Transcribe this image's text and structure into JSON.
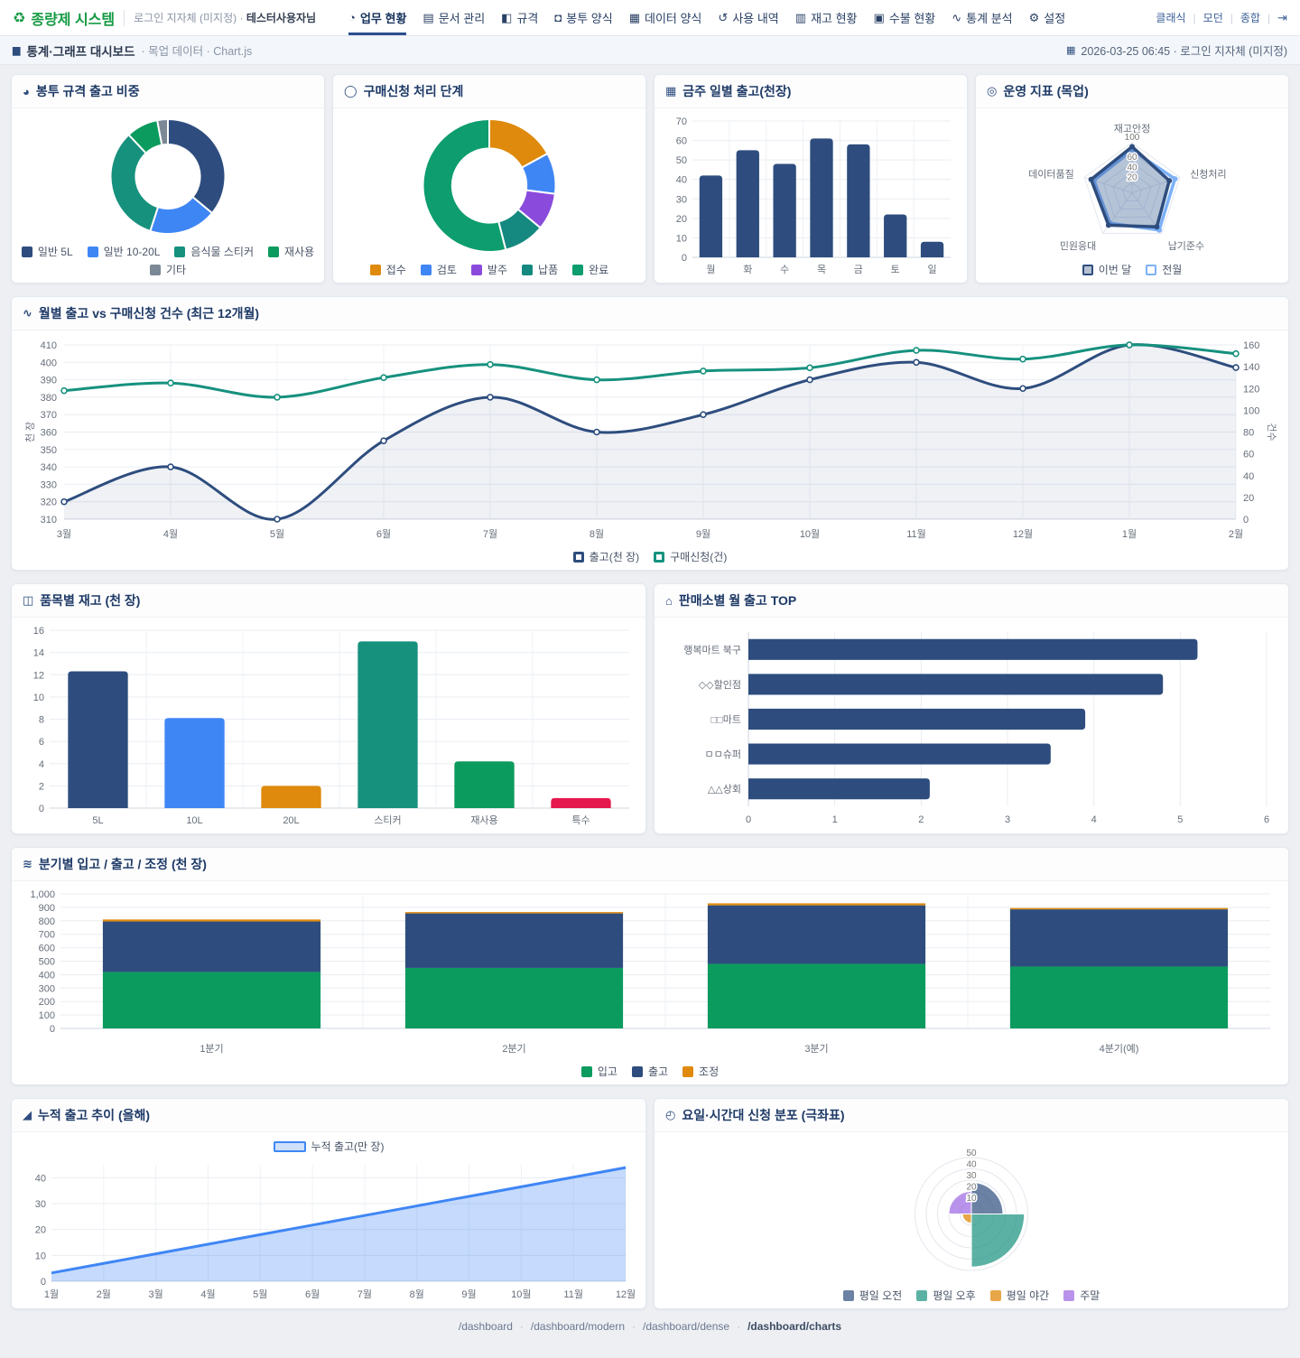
{
  "header": {
    "brand": "종량제 시스템",
    "brand_icon": "♻",
    "login_label": "로그인 지자체 (미지정) ·",
    "user_name": "테스터사용자님",
    "nav": [
      {
        "name": "work-status",
        "icon": "◔",
        "label": "업무 현황",
        "active": true
      },
      {
        "name": "document-management",
        "icon": "▤",
        "label": "문서 관리",
        "active": false
      },
      {
        "name": "specs",
        "icon": "◧",
        "label": "규격",
        "active": false
      },
      {
        "name": "envelope-forms",
        "icon": "◘",
        "label": "봉투 양식",
        "active": false
      },
      {
        "name": "data-forms",
        "icon": "▦",
        "label": "데이터 양식",
        "active": false
      },
      {
        "name": "usage-history",
        "icon": "↺",
        "label": "사용 내역",
        "active": false
      },
      {
        "name": "inventory-status",
        "icon": "▥",
        "label": "재고 현황",
        "active": false
      },
      {
        "name": "ledger-status",
        "icon": "▣",
        "label": "수불 현황",
        "active": false
      },
      {
        "name": "stats-analysis",
        "icon": "∿",
        "label": "통계 분석",
        "active": false
      },
      {
        "name": "settings",
        "icon": "⚙",
        "label": "설정",
        "active": false
      }
    ],
    "mode_links": [
      "클래식",
      "모던",
      "종합"
    ],
    "logout_icon": "⇥"
  },
  "breadcrumb": {
    "icon": "▆",
    "title": "통계·그래프 대시보드",
    "sub": "· 목업 데이터 · Chart.js",
    "date_icon": "▦",
    "right": "2026-03-25 06:45 · 로그인 지자체 (미지정)"
  },
  "footer": {
    "links": [
      "/dashboard",
      "/dashboard/modern",
      "/dashboard/dense",
      "/dashboard/charts"
    ]
  },
  "colors": {
    "navy": "#2e4d7e",
    "blue": "#3f86f5",
    "teal": "#16917e",
    "green": "#0c9b5e",
    "gray": "#7d8896",
    "orange": "#df8a0c",
    "purple": "#8a4bdd",
    "dark_teal": "#15897f",
    "red": "#e5194d",
    "light_blue": "#7db1f8",
    "brand_green": "#169a44",
    "active_underline": "#2b4f8e"
  },
  "chart_data": [
    {
      "type": "doughnut",
      "title": "봉투 규격 출고 비중",
      "icon": "◕",
      "labels": [
        "일반 5L",
        "일반 10-20L",
        "음식물 스티커",
        "재사용",
        "기타"
      ],
      "values": [
        36,
        19,
        33,
        9,
        3
      ],
      "colors": [
        "#2e4d7e",
        "#3f86f5",
        "#16917e",
        "#0c9b5e",
        "#7d8896"
      ],
      "legend_position": "bottom"
    },
    {
      "type": "doughnut",
      "title": "구매신청 처리 단계",
      "icon": "◯",
      "labels": [
        "접수",
        "검토",
        "발주",
        "납품",
        "완료"
      ],
      "values": [
        17,
        10,
        9,
        10,
        54
      ],
      "colors": [
        "#df8a0c",
        "#3f86f5",
        "#8a4bdd",
        "#15897f",
        "#0e9d6e"
      ],
      "legend_position": "bottom"
    },
    {
      "type": "bar",
      "title": "금주 일별 출고(천장)",
      "icon": "▦",
      "categories": [
        "월",
        "화",
        "수",
        "목",
        "금",
        "토",
        "일"
      ],
      "values": [
        42,
        55,
        48,
        61,
        58,
        22,
        8
      ],
      "colors": "#2e4d7e",
      "ylim": [
        0,
        70
      ],
      "step": 10,
      "grid": true
    },
    {
      "type": "radar",
      "title": "운영 지표 (목업)",
      "icon": "◎",
      "axes": [
        "재고안정",
        "신청처리",
        "납기준수",
        "민원응대",
        "데이터품질"
      ],
      "series": [
        {
          "name": "이번 달",
          "values": [
            92,
            78,
            84,
            80,
            86
          ],
          "border": "#2e4d7e",
          "fill": "rgba(46,77,126,0.3)"
        },
        {
          "name": "전월",
          "values": [
            85,
            90,
            92,
            75,
            80
          ],
          "border": "#7db1f8",
          "fill": "rgba(125,177,248,0.12)"
        }
      ],
      "max": 100,
      "ticks": [
        20,
        40,
        60,
        100
      ],
      "legend_position": "bottom"
    },
    {
      "type": "dual_line",
      "title": "월별 출고 vs 구매신청 건수 (최근 12개월)",
      "icon": "∿",
      "categories": [
        "3월",
        "4월",
        "5월",
        "6월",
        "7월",
        "8월",
        "9월",
        "10월",
        "11월",
        "12월",
        "1월",
        "2월"
      ],
      "series": [
        {
          "name": "출고(천 장)",
          "axis": "left",
          "color": "#2e4d7e",
          "fill": "rgba(46,77,126,0.08)",
          "values": [
            320,
            340,
            310,
            355,
            380,
            360,
            370,
            390,
            400,
            385,
            410,
            397
          ]
        },
        {
          "name": "구매신청(건)",
          "axis": "right",
          "color": "#16917e",
          "values": [
            118,
            125,
            112,
            130,
            142,
            128,
            136,
            139,
            155,
            147,
            160,
            152
          ]
        }
      ],
      "left_axis": {
        "label": "천 장",
        "min": 310,
        "max": 410,
        "step": 10
      },
      "right_axis": {
        "label": "건수",
        "min": 0,
        "max": 160,
        "step": 20
      },
      "legend_position": "bottom"
    },
    {
      "type": "bar",
      "title": "품목별 재고 (천 장)",
      "icon": "◫",
      "categories": [
        "5L",
        "10L",
        "20L",
        "스티커",
        "재사용",
        "특수"
      ],
      "values": [
        12.3,
        8.1,
        2,
        15,
        4.2,
        0.9
      ],
      "colors": [
        "#2e4d7e",
        "#3f86f5",
        "#df8a0c",
        "#16917e",
        "#0c9b5e",
        "#e5194d"
      ],
      "ylim": [
        0,
        16
      ],
      "step": 2,
      "grid": true
    },
    {
      "type": "hbar",
      "title": "판매소별 월 출고 TOP",
      "icon": "⌂",
      "categories": [
        "행복마트 북구",
        "◇◇할인점",
        "□□마트",
        "ㅁㅁ슈퍼",
        "△△상회"
      ],
      "values": [
        5.2,
        4.8,
        3.9,
        3.5,
        2.1
      ],
      "color": "#2e4d7e",
      "xlim": [
        0,
        6
      ],
      "step": 1
    },
    {
      "type": "stacked_bar",
      "title": "분기별 입고 / 출고 / 조정 (천 장)",
      "icon": "≋",
      "categories": [
        "1분기",
        "2분기",
        "3분기",
        "4분기(예)"
      ],
      "series": [
        {
          "name": "입고",
          "color": "#0c9b5e",
          "values": [
            420,
            450,
            480,
            460
          ]
        },
        {
          "name": "출고",
          "color": "#2e4d7e",
          "values": [
            375,
            405,
            435,
            425
          ]
        },
        {
          "name": "조정",
          "color": "#df8a0c",
          "values": [
            15,
            10,
            15,
            10
          ]
        }
      ],
      "ylim": [
        0,
        1000
      ],
      "step": 100,
      "legend_position": "bottom"
    },
    {
      "type": "area",
      "title": "누적 출고 추이 (올해)",
      "icon": "◢",
      "name": "누적 출고(만 장)",
      "categories": [
        "1월",
        "2월",
        "3월",
        "4월",
        "5월",
        "6월",
        "7월",
        "8월",
        "9월",
        "10월",
        "11월",
        "12월"
      ],
      "values": [
        3.2,
        6.9,
        10.6,
        14.3,
        18,
        21.7,
        25.4,
        29.1,
        32.8,
        36.5,
        40.2,
        43.9
      ],
      "color": "#3f86f5",
      "fill": "rgba(63,134,245,0.3)",
      "ylim": [
        0,
        45
      ],
      "ticks": [
        0,
        10,
        20,
        30,
        40
      ],
      "legend_position": "top"
    },
    {
      "type": "polar",
      "title": "요일·시간대 신청 분포 (극좌표)",
      "icon": "◴",
      "labels": [
        "평일 오전",
        "평일 오후",
        "평일 야간",
        "주말"
      ],
      "values": [
        28,
        47,
        8,
        20
      ],
      "colors": [
        "rgba(46,77,126,0.7)",
        "rgba(22,145,126,0.7)",
        "rgba(223,138,12,0.75)",
        "rgba(138,75,221,0.6)"
      ],
      "max": 50,
      "ticks": [
        10,
        20,
        30,
        40,
        50
      ],
      "legend_position": "bottom"
    }
  ]
}
